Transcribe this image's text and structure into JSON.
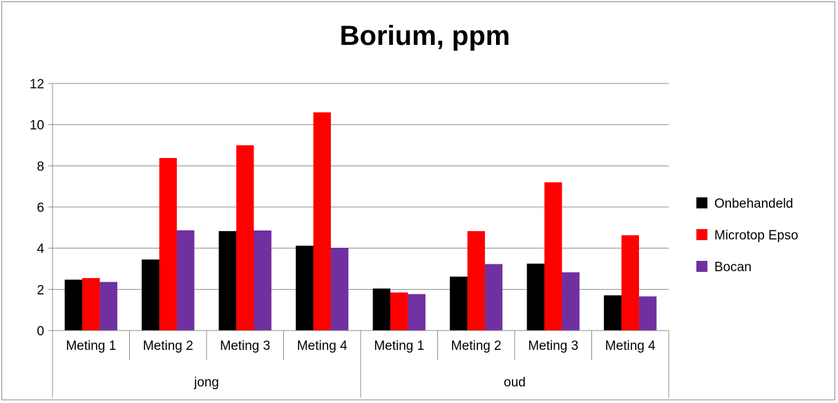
{
  "chart_data": {
    "type": "bar",
    "title": "Borium, ppm",
    "xlabel": "",
    "ylabel": "",
    "ylim": [
      0,
      12
    ],
    "yticks": [
      0,
      2,
      4,
      6,
      8,
      10,
      12
    ],
    "grid": true,
    "legend_position": "right",
    "groups": [
      {
        "label": "jong",
        "categories": [
          "Meting 1",
          "Meting 2",
          "Meting 3",
          "Meting 4"
        ]
      },
      {
        "label": "oud",
        "categories": [
          "Meting 1",
          "Meting 2",
          "Meting 3",
          "Meting 4"
        ]
      }
    ],
    "categories": [
      "Meting 1",
      "Meting 2",
      "Meting 3",
      "Meting 4",
      "Meting 1",
      "Meting 2",
      "Meting 3",
      "Meting 4"
    ],
    "series": [
      {
        "name": "Onbehandeld",
        "color": "#000000",
        "values": [
          2.47,
          3.45,
          4.83,
          4.12,
          2.04,
          2.62,
          3.25,
          1.71
        ]
      },
      {
        "name": "Microtop Epso",
        "color": "#ff0000",
        "values": [
          2.55,
          8.38,
          9.0,
          10.6,
          1.85,
          4.83,
          7.2,
          4.63
        ]
      },
      {
        "name": "Bocan",
        "color": "#7030a0",
        "values": [
          2.36,
          4.87,
          4.86,
          4.02,
          1.77,
          3.23,
          2.83,
          1.66
        ]
      }
    ]
  }
}
